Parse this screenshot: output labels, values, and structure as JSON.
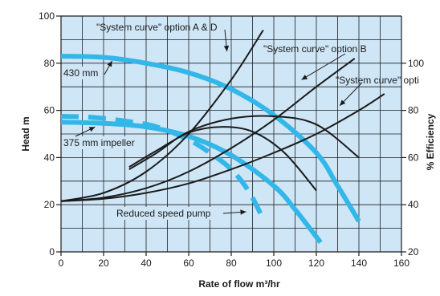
{
  "chart_data": {
    "type": "line",
    "xlabel": "Rate of flow m³/hr",
    "ylabel": "Head m",
    "ylabel_right": "% Efficiency",
    "xlim": [
      0,
      160
    ],
    "ylim": [
      0,
      100
    ],
    "ylim_right": [
      20,
      120
    ],
    "x_ticks": [
      0,
      20,
      40,
      60,
      80,
      100,
      120,
      140,
      160
    ],
    "y_ticks": [
      0,
      20,
      40,
      60,
      80,
      100
    ],
    "y_right_ticks": [
      20,
      40,
      60,
      80,
      100
    ],
    "grid": true,
    "colors": {
      "plot_background": "#cfe6f6",
      "pump_curves": "#33b7e9",
      "system_and_efficiency_curves": "#1a1a1a"
    },
    "series": [
      {
        "name": "430 mm",
        "kind": "pump-curve",
        "dashed": false,
        "x": [
          0,
          20,
          40,
          60,
          80,
          100,
          120,
          130,
          140
        ],
        "y": [
          83,
          82.5,
          80,
          76,
          69,
          58,
          42,
          28,
          13
        ]
      },
      {
        "name": "375 mm impeller",
        "kind": "pump-curve",
        "dashed": false,
        "x": [
          0,
          20,
          40,
          60,
          80,
          100,
          110,
          122
        ],
        "y": [
          55,
          54.5,
          53,
          49,
          41,
          28,
          18,
          4
        ]
      },
      {
        "name": "Reduced speed pump",
        "kind": "pump-curve",
        "dashed": true,
        "x": [
          0,
          15,
          30,
          45,
          60,
          70,
          80,
          88,
          95
        ],
        "y": [
          57.5,
          57,
          55.5,
          53,
          47.5,
          42,
          35,
          26,
          14
        ]
      },
      {
        "name": "\"System curve\" option A & D",
        "kind": "system-curve",
        "x": [
          0,
          20,
          40,
          60,
          80,
          95
        ],
        "y": [
          21.5,
          25,
          34,
          50,
          73,
          94
        ]
      },
      {
        "name": "\"System curve\" option B",
        "kind": "system-curve",
        "x": [
          0,
          20,
          40,
          60,
          80,
          100,
          120,
          138
        ],
        "y": [
          21.5,
          23,
          27,
          34,
          44,
          56,
          70,
          82
        ]
      },
      {
        "name": "\"System curve\" option C",
        "kind": "system-curve",
        "x": [
          0,
          20,
          40,
          60,
          80,
          100,
          120,
          140,
          152
        ],
        "y": [
          21.5,
          22.5,
          25,
          29,
          35,
          42,
          50,
          60,
          67
        ]
      },
      {
        "name": "",
        "kind": "efficiency-curve",
        "x": [
          32,
          45,
          60,
          80,
          100,
          120,
          140
        ],
        "y": [
          35,
          42,
          51,
          56.5,
          57.5,
          54,
          40
        ]
      },
      {
        "name": "",
        "kind": "efficiency-curve",
        "x": [
          32,
          45,
          60,
          75,
          90,
          105,
          120
        ],
        "y": [
          36,
          43,
          50.5,
          53,
          51,
          42,
          26
        ]
      }
    ],
    "annotations": [
      {
        "text": "\"System curve\" option A & D",
        "arrow_to": [
          78,
          85
        ]
      },
      {
        "text": "\"System curve\" option B",
        "arrow_to": [
          113,
          73
        ]
      },
      {
        "text": "\"System curve\" option C",
        "shown_text": "\"System curve\" opti",
        "arrow_to": [
          131,
          62
        ]
      },
      {
        "text": "430 mm",
        "arrow_to": [
          24,
          81
        ]
      },
      {
        "text": "375 mm impeller",
        "arrow_to": [
          16,
          53
        ]
      },
      {
        "text": "Reduced speed pump",
        "arrow_to": [
          87,
          17
        ]
      }
    ]
  }
}
